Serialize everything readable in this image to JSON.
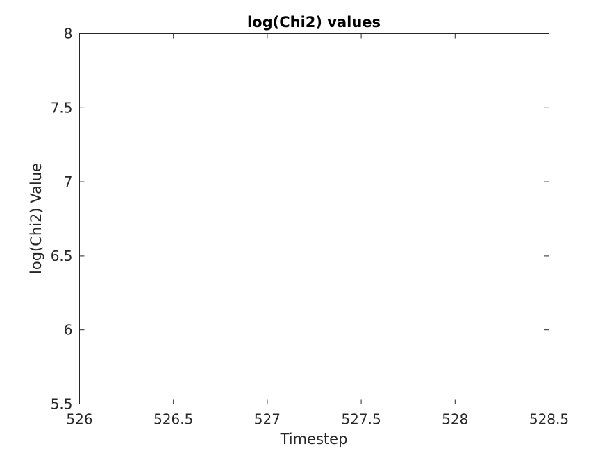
{
  "chart_data": {
    "type": "line",
    "title": "log(Chi2) values",
    "xlabel": "Timestep",
    "ylabel": "log(Chi2) Value",
    "xlim": [
      526,
      528.5
    ],
    "ylim": [
      5.5,
      8
    ],
    "x_ticks": [
      "526",
      "526.5",
      "527",
      "527.5",
      "528",
      "528.5"
    ],
    "y_ticks": [
      "5.5",
      "6",
      "6.5",
      "7",
      "7.5",
      "8"
    ],
    "grid": false,
    "series": []
  }
}
